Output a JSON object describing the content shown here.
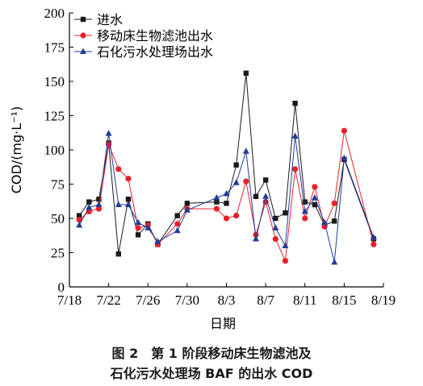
{
  "chart_data": {
    "type": "line",
    "title": "",
    "xlabel": "日期",
    "ylabel": "COD/(mg·L⁻¹)",
    "ylim": [
      0,
      200
    ],
    "yticks": [
      0,
      25,
      50,
      75,
      100,
      125,
      150,
      175,
      200
    ],
    "xlim": [
      "2000-07-18",
      "2000-08-19"
    ],
    "xticks": [
      "2000-07-18",
      "2000-07-22",
      "2000-07-26",
      "2000-07-30",
      "2000-08-03",
      "2000-08-07",
      "2000-08-11",
      "2000-08-15",
      "2000-08-19"
    ],
    "xtick_labels": [
      "7/18",
      "7/22",
      "7/26",
      "7/30",
      "8/3",
      "8/7",
      "8/11",
      "8/15",
      "8/19"
    ],
    "legend_position": "top-left",
    "grid": false,
    "series": [
      {
        "name": "进水",
        "color": "#1a1a1a",
        "marker": "square",
        "points": [
          [
            "2000-07-19",
            52
          ],
          [
            "2000-07-20",
            62
          ],
          [
            "2000-07-21",
            64
          ],
          [
            "2000-07-22",
            105
          ],
          [
            "2000-07-23",
            24
          ],
          [
            "2000-07-24",
            64
          ],
          [
            "2000-07-25",
            38
          ],
          [
            "2000-07-26",
            46
          ],
          [
            "2000-07-27",
            31
          ],
          [
            "2000-07-29",
            52
          ],
          [
            "2000-07-30",
            61
          ],
          [
            "2000-08-02",
            62
          ],
          [
            "2000-08-03",
            61
          ],
          [
            "2000-08-04",
            89
          ],
          [
            "2000-08-05",
            156
          ],
          [
            "2000-08-06",
            66
          ],
          [
            "2000-08-07",
            78
          ],
          [
            "2000-08-08",
            50
          ],
          [
            "2000-08-09",
            54
          ],
          [
            "2000-08-10",
            134
          ],
          [
            "2000-08-11",
            62
          ],
          [
            "2000-08-12",
            60
          ],
          [
            "2000-08-13",
            45
          ],
          [
            "2000-08-14",
            48
          ],
          [
            "2000-08-15",
            93
          ],
          [
            "2000-08-18",
            35
          ]
        ]
      },
      {
        "name": "移动床生物滤池出水",
        "color": "#e8202a",
        "marker": "circle",
        "points": [
          [
            "2000-07-19",
            49
          ],
          [
            "2000-07-20",
            55
          ],
          [
            "2000-07-21",
            57
          ],
          [
            "2000-07-22",
            104
          ],
          [
            "2000-07-23",
            86
          ],
          [
            "2000-07-24",
            79
          ],
          [
            "2000-07-25",
            43
          ],
          [
            "2000-07-26",
            45
          ],
          [
            "2000-07-27",
            31
          ],
          [
            "2000-07-29",
            46
          ],
          [
            "2000-07-30",
            57
          ],
          [
            "2000-08-02",
            57
          ],
          [
            "2000-08-03",
            50
          ],
          [
            "2000-08-04",
            52
          ],
          [
            "2000-08-05",
            77
          ],
          [
            "2000-08-06",
            38
          ],
          [
            "2000-08-07",
            62
          ],
          [
            "2000-08-08",
            35
          ],
          [
            "2000-08-09",
            19
          ],
          [
            "2000-08-10",
            86
          ],
          [
            "2000-08-11",
            50
          ],
          [
            "2000-08-12",
            73
          ],
          [
            "2000-08-13",
            44
          ],
          [
            "2000-08-14",
            61
          ],
          [
            "2000-08-15",
            114
          ],
          [
            "2000-08-18",
            31
          ]
        ]
      },
      {
        "name": "石化污水处理场出水",
        "color": "#1f3c9a",
        "marker": "triangle",
        "points": [
          [
            "2000-07-19",
            45
          ],
          [
            "2000-07-20",
            58
          ],
          [
            "2000-07-21",
            60
          ],
          [
            "2000-07-22",
            112
          ],
          [
            "2000-07-23",
            60
          ],
          [
            "2000-07-24",
            60
          ],
          [
            "2000-07-25",
            47
          ],
          [
            "2000-07-26",
            43
          ],
          [
            "2000-07-27",
            33
          ],
          [
            "2000-07-29",
            41
          ],
          [
            "2000-07-30",
            56
          ],
          [
            "2000-08-02",
            65
          ],
          [
            "2000-08-03",
            68
          ],
          [
            "2000-08-04",
            76
          ],
          [
            "2000-08-05",
            99
          ],
          [
            "2000-08-06",
            35
          ],
          [
            "2000-08-07",
            66
          ],
          [
            "2000-08-08",
            43
          ],
          [
            "2000-08-09",
            30
          ],
          [
            "2000-08-10",
            110
          ],
          [
            "2000-08-11",
            55
          ],
          [
            "2000-08-12",
            65
          ],
          [
            "2000-08-13",
            47
          ],
          [
            "2000-08-14",
            18
          ],
          [
            "2000-08-15",
            94
          ],
          [
            "2000-08-18",
            36
          ]
        ]
      }
    ]
  },
  "caption": {
    "line1": "图 2　第 1 阶段移动床生物滤池及",
    "line2": "石化污水处理场 BAF 的出水 COD"
  }
}
